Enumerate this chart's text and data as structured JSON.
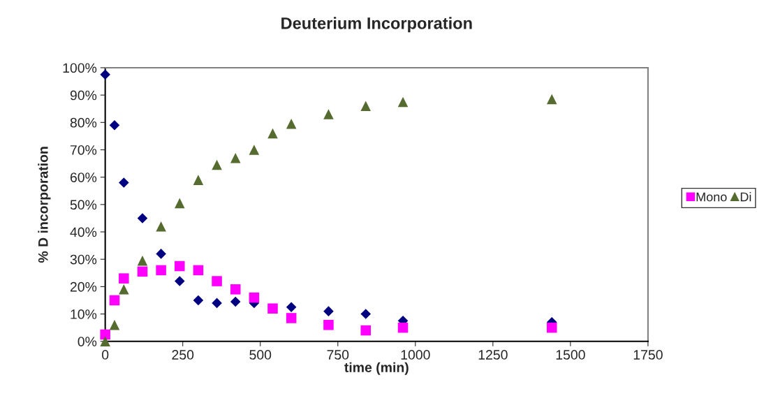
{
  "chart_data": {
    "type": "scatter",
    "title": "Deuterium Incorporation",
    "xlabel": "time (min)",
    "ylabel": "% D incorporation",
    "x": [
      0,
      30,
      60,
      120,
      180,
      240,
      300,
      360,
      420,
      480,
      540,
      600,
      720,
      840,
      960,
      1440
    ],
    "series": [
      {
        "color": "#000080",
        "marker": "diamond",
        "values": [
          97.5,
          79,
          58,
          45,
          32,
          22,
          15,
          14,
          14.5,
          14,
          null,
          12.5,
          11,
          10,
          7.5,
          7
        ]
      },
      {
        "name": "Mono",
        "color": "#ff00ff",
        "marker": "square",
        "values": [
          2.5,
          15,
          23,
          25.5,
          26,
          27.5,
          26,
          22,
          19,
          16,
          12,
          8.5,
          6,
          4,
          5,
          5
        ]
      },
      {
        "name": "Di",
        "color": "#556b2f",
        "marker": "triangle",
        "values": [
          0,
          6,
          19,
          29.5,
          42,
          50.5,
          59,
          64.5,
          67,
          70,
          76,
          79.5,
          83,
          86,
          87.5,
          88.5
        ]
      }
    ],
    "xlim": [
      0,
      1750
    ],
    "xticks": [
      0,
      250,
      500,
      750,
      1000,
      1250,
      1500,
      1750
    ],
    "ylim": [
      0,
      100
    ],
    "yticks": [
      {
        "value": 0,
        "label": "0%"
      },
      {
        "value": 10,
        "label": "10%"
      },
      {
        "value": 20,
        "label": "20%"
      },
      {
        "value": 30,
        "label": "30%"
      },
      {
        "value": 40,
        "label": "40%"
      },
      {
        "value": 50,
        "label": "50%"
      },
      {
        "value": 60,
        "label": "60%"
      },
      {
        "value": 70,
        "label": "70%"
      },
      {
        "value": 80,
        "label": "80%"
      },
      {
        "value": 90,
        "label": "90%"
      },
      {
        "value": 100,
        "label": "100%"
      }
    ],
    "grid": false,
    "legend": "right"
  }
}
